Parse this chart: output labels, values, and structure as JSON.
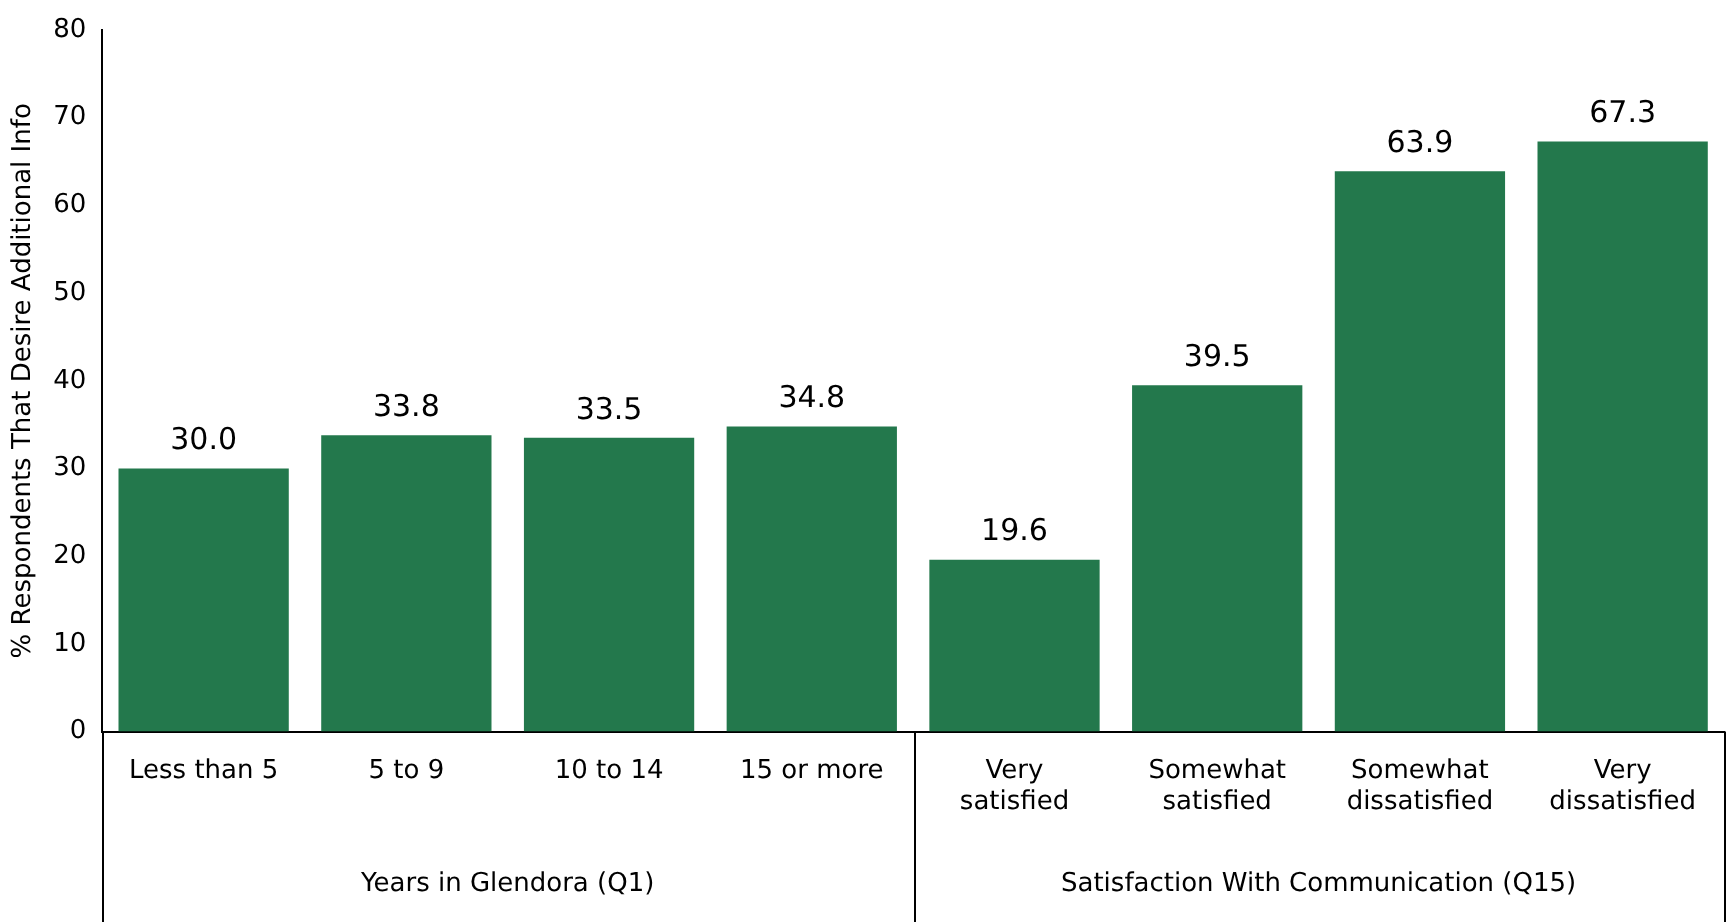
{
  "chart_data": {
    "type": "bar",
    "ylabel": "% Respondents That Desire Additional Info",
    "categories": [
      "Less than 5",
      "5 to 9",
      "10 to 14",
      "15 or more",
      "Very satisfied",
      "Somewhat satisfied",
      "Somewhat dissatisfied",
      "Very dissatisfied"
    ],
    "values": [
      30.0,
      33.8,
      33.5,
      34.8,
      19.6,
      39.5,
      63.9,
      67.3
    ],
    "value_labels": [
      "30.0",
      "33.8",
      "33.5",
      "34.8",
      "19.6",
      "39.5",
      "63.9",
      "67.3"
    ],
    "color": "#23784c",
    "ylim": [
      0,
      80
    ],
    "yticks": [
      0,
      10,
      20,
      30,
      40,
      50,
      60,
      70,
      80
    ],
    "grid": false,
    "legend": false,
    "annotations": [
      "Years in Glendora (Q1)",
      "Satisfaction With Communication (Q15)"
    ]
  }
}
